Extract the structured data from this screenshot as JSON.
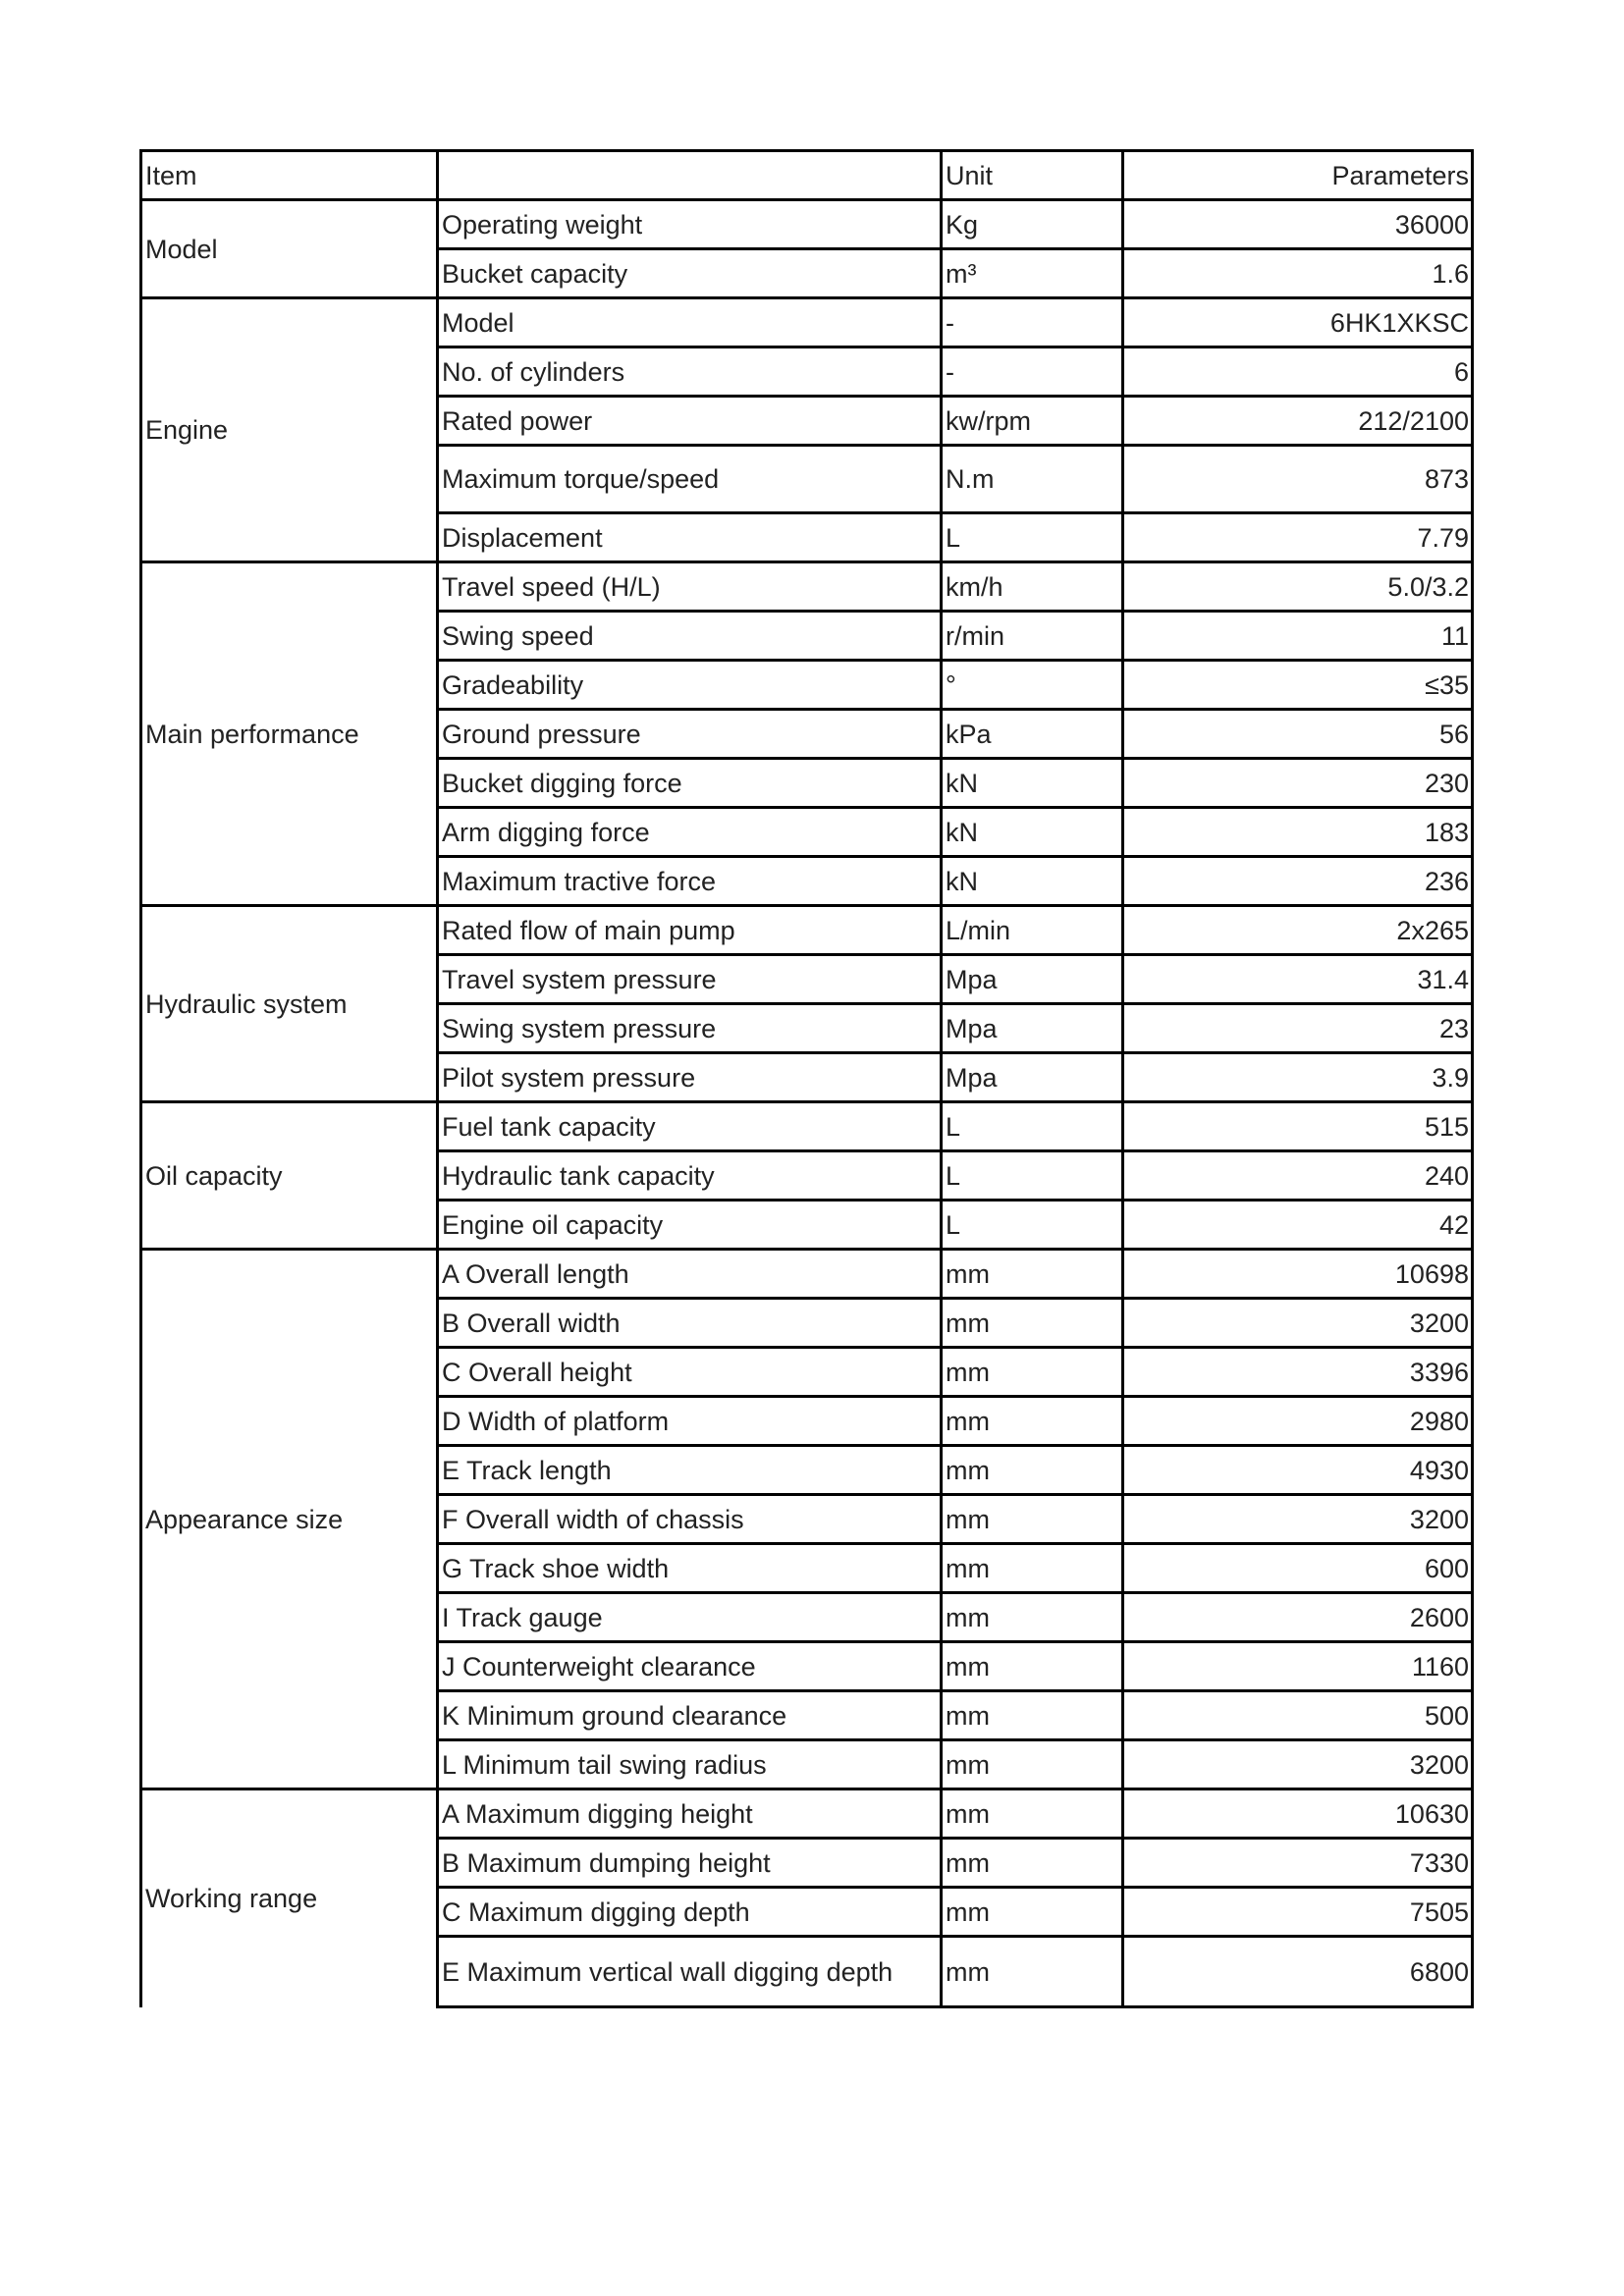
{
  "header": {
    "item": "Item",
    "name": "",
    "unit": "Unit",
    "parameters": "Parameters"
  },
  "groups": [
    {
      "label": "Model",
      "rows": [
        {
          "name": "Operating weight",
          "unit": "Kg",
          "value": "36000"
        },
        {
          "name": "Bucket capacity",
          "unit": "m³",
          "value": "1.6"
        }
      ]
    },
    {
      "label": "Engine",
      "rows": [
        {
          "name": "Model",
          "unit": "-",
          "value": "6HK1XKSC"
        },
        {
          "name": "No. of cylinders",
          "unit": "-",
          "value": "6"
        },
        {
          "name": "Rated power",
          "unit": "kw/rpm",
          "value": "212/2100"
        },
        {
          "name": "Maximum torque/speed",
          "unit": "N.m",
          "value": "873"
        },
        {
          "name": "Displacement",
          "unit": "L",
          "value": "7.79"
        }
      ]
    },
    {
      "label": "Main performance",
      "rows": [
        {
          "name": "Travel speed (H/L)",
          "unit": "km/h",
          "value": "5.0/3.2"
        },
        {
          "name": "Swing speed",
          "unit": "r/min",
          "value": "11"
        },
        {
          "name": "Gradeability",
          "unit": "°",
          "value": "≤35"
        },
        {
          "name": "Ground pressure",
          "unit": "kPa",
          "value": "56"
        },
        {
          "name": "Bucket digging force",
          "unit": "kN",
          "value": "230"
        },
        {
          "name": "Arm digging force",
          "unit": "kN",
          "value": "183"
        },
        {
          "name": "Maximum tractive force",
          "unit": "kN",
          "value": "236"
        }
      ]
    },
    {
      "label": "Hydraulic system",
      "rows": [
        {
          "name": "Rated flow of main pump",
          "unit": "L/min",
          "value": "2x265"
        },
        {
          "name": "Travel system pressure",
          "unit": "Mpa",
          "value": "31.4"
        },
        {
          "name": "Swing system pressure",
          "unit": "Mpa",
          "value": "23"
        },
        {
          "name": "Pilot system pressure",
          "unit": "Mpa",
          "value": "3.9"
        }
      ]
    },
    {
      "label": "Oil capacity",
      "rows": [
        {
          "name": "Fuel tank capacity",
          "unit": "L",
          "value": "515"
        },
        {
          "name": "Hydraulic tank capacity",
          "unit": "L",
          "value": "240"
        },
        {
          "name": "Engine oil capacity",
          "unit": "L",
          "value": "42"
        }
      ]
    },
    {
      "label": "Appearance size",
      "rows": [
        {
          "name": "A Overall length",
          "unit": "mm",
          "value": "10698"
        },
        {
          "name": "B Overall width",
          "unit": "mm",
          "value": "3200"
        },
        {
          "name": "C Overall height",
          "unit": "mm",
          "value": "3396"
        },
        {
          "name": "D Width of platform",
          "unit": "mm",
          "value": "2980"
        },
        {
          "name": "E Track length",
          "unit": "mm",
          "value": "4930"
        },
        {
          "name": "F Overall width of chassis",
          "unit": "mm",
          "value": "3200"
        },
        {
          "name": "G Track shoe width",
          "unit": "mm",
          "value": "600"
        },
        {
          "name": "I Track gauge",
          "unit": "mm",
          "value": "2600"
        },
        {
          "name": "J Counterweight clearance",
          "unit": "mm",
          "value": "1160"
        },
        {
          "name": "K Minimum ground clearance",
          "unit": "mm",
          "value": "500"
        },
        {
          "name": "L Minimum tail swing radius",
          "unit": "mm",
          "value": "3200"
        }
      ]
    },
    {
      "label": "Working range",
      "rows": [
        {
          "name": "A Maximum digging height",
          "unit": "mm",
          "value": "10630"
        },
        {
          "name": "B Maximum dumping height",
          "unit": "mm",
          "value": "7330"
        },
        {
          "name": "C Maximum digging depth",
          "unit": "mm",
          "value": "7505"
        },
        {
          "name": "E Maximum vertical wall digging depth",
          "unit": "mm",
          "value": "6800"
        }
      ]
    }
  ]
}
